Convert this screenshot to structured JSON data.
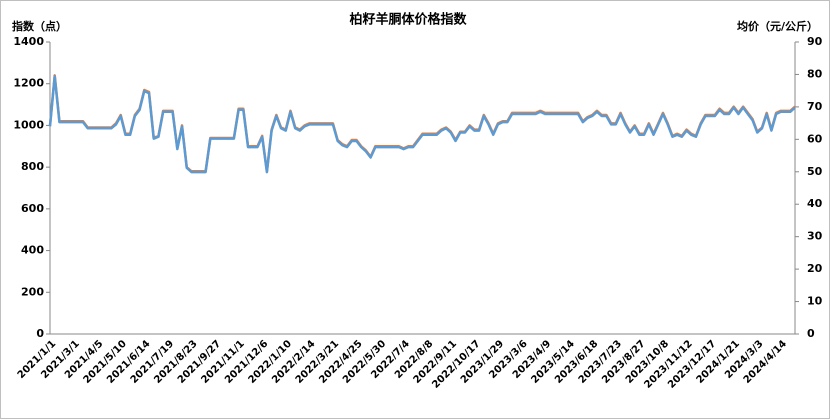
{
  "chart_data": {
    "type": "line",
    "title": "柏籽羊胴体价格指数",
    "y_label": "指数（点）",
    "y2_label": "均价（元/公斤）",
    "categories": [
      "2021/1/1",
      null,
      null,
      null,
      null,
      "2021/3/1",
      null,
      null,
      null,
      null,
      "2021/4/5",
      null,
      null,
      null,
      null,
      "2021/5/10",
      null,
      null,
      null,
      null,
      "2021/6/14",
      null,
      null,
      null,
      null,
      "2021/7/19",
      null,
      null,
      null,
      null,
      "2021/8/23",
      null,
      null,
      null,
      null,
      "2021/9/27",
      null,
      null,
      null,
      null,
      "2021/11/1",
      null,
      null,
      null,
      null,
      "2021/12/6",
      null,
      null,
      null,
      null,
      "2022/1/10",
      null,
      null,
      null,
      null,
      "2022/2/14",
      null,
      null,
      null,
      null,
      "2022/3/21",
      null,
      null,
      null,
      null,
      "2022/4/25",
      null,
      null,
      null,
      null,
      "2022/5/30",
      null,
      null,
      null,
      null,
      "2022/7/4",
      null,
      null,
      null,
      null,
      "2022/8/8",
      null,
      null,
      null,
      null,
      "2022/9/11",
      null,
      null,
      null,
      null,
      "2022/10/17",
      null,
      null,
      null,
      null,
      "2023/1/29",
      null,
      null,
      null,
      null,
      "2023/3/6",
      null,
      null,
      null,
      null,
      "2023/4/9",
      null,
      null,
      null,
      null,
      "2023/5/14",
      null,
      null,
      null,
      null,
      "2023/6/18",
      null,
      null,
      null,
      null,
      "2023/7/23",
      null,
      null,
      null,
      null,
      "2023/8/27",
      null,
      null,
      null,
      null,
      "2023/10/8",
      null,
      null,
      null,
      null,
      "2023/11/12",
      null,
      null,
      null,
      null,
      "2023/12/17",
      null,
      null,
      null,
      null,
      "2024/1/21",
      null,
      null,
      null,
      null,
      "2024/3/3",
      null,
      null,
      null,
      null,
      "2024/4/14",
      null,
      null,
      null
    ],
    "series": [
      {
        "color": "#ed7d31",
        "values": [
          1000,
          1240,
          1020,
          1020,
          1020,
          1020,
          1020,
          1020,
          990,
          990,
          990,
          990,
          990,
          990,
          1010,
          1050,
          960,
          960,
          1050,
          1080,
          1170,
          1160,
          940,
          950,
          1070,
          1070,
          1070,
          890,
          1000,
          800,
          780,
          780,
          780,
          780,
          940,
          940,
          940,
          940,
          940,
          940,
          1080,
          1080,
          900,
          900,
          900,
          950,
          780,
          980,
          1050,
          990,
          980,
          1070,
          990,
          980,
          1000,
          1010,
          1010,
          1010,
          1010,
          1010,
          1010,
          930,
          910,
          900,
          930,
          930,
          900,
          880,
          850,
          900,
          900,
          900,
          900,
          900,
          900,
          890,
          900,
          900,
          930,
          960,
          960,
          960,
          960,
          980,
          990,
          970,
          930,
          970,
          970,
          1000,
          980,
          980,
          1050,
          1010,
          960,
          1010,
          1020,
          1020,
          1060,
          1060,
          1060,
          1060,
          1060,
          1060,
          1070,
          1060,
          1060,
          1060,
          1060,
          1060,
          1060,
          1060,
          1060,
          1020,
          1040,
          1050,
          1070,
          1050,
          1050,
          1010,
          1010,
          1060,
          1010,
          970,
          1000,
          960,
          960,
          1010,
          960,
          1010,
          1060,
          1010,
          950,
          960,
          950,
          980,
          960,
          950,
          1010,
          1050,
          1050,
          1050,
          1080,
          1060,
          1060,
          1090,
          1060,
          1090,
          1060,
          1030,
          970,
          990,
          1060,
          980,
          1060,
          1070,
          1070,
          1070,
          1090
        ]
      },
      {
        "color": "#5b9bd5",
        "axis": "y2",
        "values": [
          64,
          79.4,
          65.3,
          65.3,
          65.3,
          65.3,
          65.3,
          65.3,
          63.4,
          63.4,
          63.4,
          63.4,
          63.4,
          63.4,
          64.6,
          67.2,
          61.4,
          61.4,
          67.2,
          69.1,
          74.9,
          74.2,
          60.2,
          60.8,
          68.5,
          68.5,
          68.5,
          57,
          64,
          51.2,
          49.9,
          49.9,
          49.9,
          49.9,
          60.2,
          60.2,
          60.2,
          60.2,
          60.2,
          60.2,
          69.1,
          69.1,
          57.6,
          57.6,
          57.6,
          60.8,
          49.9,
          62.7,
          67.2,
          63.4,
          62.7,
          68.5,
          63.4,
          62.7,
          64,
          64.6,
          64.6,
          64.6,
          64.6,
          64.6,
          64.6,
          59.5,
          58.2,
          57.6,
          59.5,
          59.5,
          57.6,
          56.3,
          54.4,
          57.6,
          57.6,
          57.6,
          57.6,
          57.6,
          57.6,
          57,
          57.6,
          57.6,
          59.5,
          61.4,
          61.4,
          61.4,
          61.4,
          62.7,
          63.4,
          62.1,
          59.5,
          62.1,
          62.1,
          64,
          62.7,
          62.7,
          67.2,
          64.6,
          61.4,
          64.6,
          65.3,
          65.3,
          67.8,
          67.8,
          67.8,
          67.8,
          67.8,
          67.8,
          68.5,
          67.8,
          67.8,
          67.8,
          67.8,
          67.8,
          67.8,
          67.8,
          67.8,
          65.3,
          66.6,
          67.2,
          68.5,
          67.2,
          67.2,
          64.6,
          64.6,
          67.8,
          64.6,
          62.1,
          64,
          61.4,
          61.4,
          64.6,
          61.4,
          64.6,
          67.8,
          64.6,
          60.8,
          61.4,
          60.8,
          62.7,
          61.4,
          60.8,
          64.6,
          67.2,
          67.2,
          67.2,
          69.1,
          67.8,
          67.8,
          69.8,
          67.8,
          69.8,
          67.8,
          65.9,
          62.1,
          63.4,
          67.8,
          62.7,
          67.8,
          68.5,
          68.5,
          68.5,
          69.8
        ]
      }
    ],
    "ylim": [
      0,
      1400
    ],
    "yticks": [
      0,
      200,
      400,
      600,
      800,
      1000,
      1200,
      1400
    ],
    "y2lim": [
      0,
      90
    ],
    "y2ticks": [
      0,
      10,
      20,
      30,
      40,
      50,
      60,
      70,
      80,
      90
    ]
  }
}
